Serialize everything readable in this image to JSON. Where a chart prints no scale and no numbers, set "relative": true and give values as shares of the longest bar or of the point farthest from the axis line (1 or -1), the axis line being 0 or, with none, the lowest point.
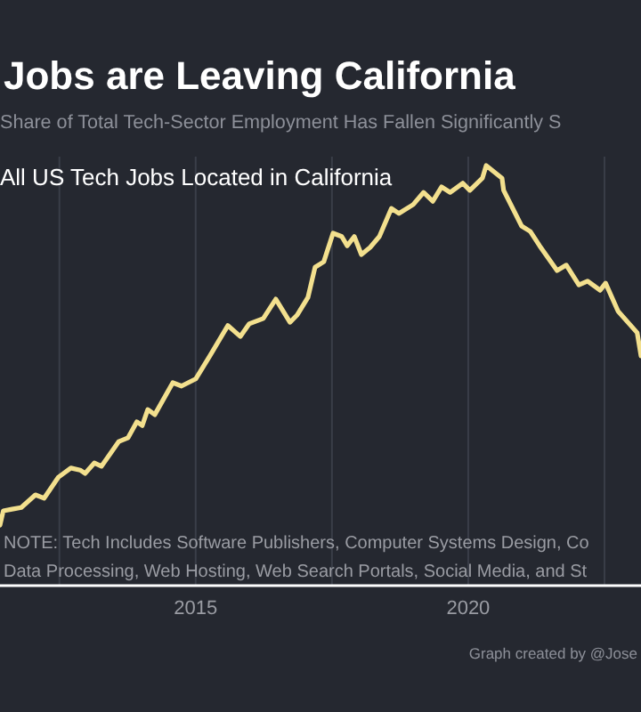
{
  "chart_data": {
    "type": "line",
    "title": "Jobs are Leaving California",
    "subtitle": "Share of Total Tech-Sector Employment Has Fallen Significantly S",
    "ylabel": "All US Tech Jobs Located in California",
    "relative": true,
    "grid": "x",
    "line_style": "solid",
    "marker": "none",
    "annotations": [
      "NOTE: Tech Includes Software Publishers, Computer Systems Design, Co",
      "Data Processing, Web Hosting, Web Search Portals, Social Media, and St",
      "Graph created by @Jose"
    ],
    "xlim": [
      2011.41,
      2023.17
    ],
    "xticks": [
      {
        "value": 2012.5,
        "label": null
      },
      2015,
      {
        "value": 2017.5,
        "label": null
      },
      2020,
      {
        "value": 2022.5,
        "label": null
      }
    ],
    "series": [
      {
        "color": "#f3e08e",
        "x": [
          2011.41,
          2011.47,
          2011.63,
          2011.8,
          2012.06,
          2012.22,
          2012.48,
          2012.71,
          2012.88,
          2012.97,
          2013.14,
          2013.27,
          2013.59,
          2013.76,
          2013.92,
          2014.02,
          2014.12,
          2014.25,
          2014.58,
          2014.74,
          2015.0,
          2015.26,
          2015.59,
          2015.82,
          2015.98,
          2016.24,
          2016.47,
          2016.73,
          2016.86,
          2017.06,
          2017.19,
          2017.35,
          2017.52,
          2017.68,
          2017.78,
          2017.91,
          2018.04,
          2018.2,
          2018.37,
          2018.59,
          2018.73,
          2018.99,
          2019.18,
          2019.35,
          2019.51,
          2019.67,
          2019.9,
          2020.03,
          2020.26,
          2020.33,
          2020.62,
          2020.65,
          2020.98,
          2021.14,
          2021.31,
          2021.63,
          2021.8,
          2022.03,
          2022.19,
          2022.42,
          2022.52,
          2022.75,
          2023.1,
          2023.17
        ],
        "values": [
          0.144,
          0.178,
          0.182,
          0.186,
          0.216,
          0.208,
          0.258,
          0.28,
          0.275,
          0.267,
          0.292,
          0.284,
          0.343,
          0.352,
          0.39,
          0.381,
          0.419,
          0.407,
          0.483,
          0.475,
          0.492,
          0.547,
          0.619,
          0.593,
          0.623,
          0.636,
          0.682,
          0.627,
          0.644,
          0.686,
          0.758,
          0.771,
          0.839,
          0.831,
          0.809,
          0.831,
          0.788,
          0.805,
          0.831,
          0.898,
          0.886,
          0.907,
          0.936,
          0.915,
          0.949,
          0.936,
          0.958,
          0.941,
          0.97,
          1,
          0.97,
          0.941,
          0.856,
          0.843,
          0.809,
          0.75,
          0.763,
          0.716,
          0.725,
          0.703,
          0.72,
          0.653,
          0.602,
          0.547
        ]
      }
    ]
  }
}
